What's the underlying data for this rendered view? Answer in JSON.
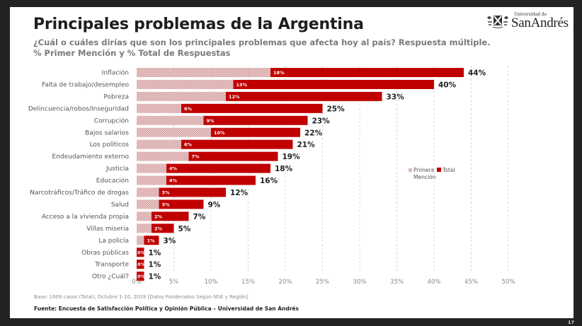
{
  "slide": {
    "title": "Principales problemas de la Argentina",
    "subtitle_line1": "¿Cuál o cuáles dirías que son los principales problemas que afecta hoy al país? Respuesta múltiple.",
    "subtitle_line2": "% Primer Mención y % Total de Respuestas",
    "logo": {
      "small_text": "Universidad de",
      "name": "SanAndrés",
      "icon": "university-crest-icon"
    },
    "base_note": "Base: 1009 casos (Total), Octubre 1-10, 2019 [Datos Ponderados Según NSE y Región]",
    "source_note": "Fuente: Encuesta de Satisfacción Política y Opinión Pública – Universidad de San Andrés",
    "page_number": "17"
  },
  "colors": {
    "total_bar": "#c00000",
    "primera_hatch_bg": "#f2d0d0",
    "primera_hatch_line": "#c88a8a",
    "frame": "#232325"
  },
  "chart_data": {
    "type": "bar",
    "orientation": "horizontal",
    "title": "Principales problemas de la Argentina",
    "xlabel": "",
    "ylabel": "",
    "xlim": [
      0,
      50
    ],
    "x_ticks": [
      "0%",
      "5%",
      "10%",
      "15%",
      "20%",
      "25%",
      "30%",
      "35%",
      "40%",
      "45%",
      "50%"
    ],
    "x_tick_values": [
      0,
      5,
      10,
      15,
      20,
      25,
      30,
      35,
      40,
      45,
      50
    ],
    "grid": "vertical dashed",
    "legend": {
      "placement": "right-center",
      "entries": [
        {
          "name": "Primera Mención",
          "label_line1": "Primera",
          "label_line2": "Mención",
          "style": "hatched"
        },
        {
          "name": "Total",
          "label_line1": "Total",
          "style": "solid-red"
        }
      ]
    },
    "categories": [
      "Inflación",
      "Falta de trabajo/desempleo",
      "Pobreza",
      "Delincuencia/robos/Inseguridad",
      "Corrupción",
      "Bajos salarios",
      "Los políticos",
      "Endeudamiento externo",
      "Justicia",
      "Educación",
      "Narcotráficos/Tráfico de drogas",
      "Salud",
      "Acceso a la vivienda propia",
      "Villas miseria",
      "La policía",
      "Obras públicas",
      "Transporte",
      "Otro ¿Cuál?"
    ],
    "series": [
      {
        "name": "Primera Mención",
        "values": [
          18,
          13,
          12,
          6,
          9,
          10,
          6,
          7,
          4,
          4,
          3,
          3,
          2,
          2,
          1,
          0,
          0,
          0
        ],
        "labels": [
          "18%",
          "13%",
          "12%",
          "6%",
          "9%",
          "10%",
          "6%",
          "7%",
          "4%",
          "4%",
          "3%",
          "3%",
          "2%",
          "2%",
          "1%",
          "0%",
          "0%",
          "0%"
        ]
      },
      {
        "name": "Total",
        "values": [
          44,
          40,
          33,
          25,
          23,
          22,
          21,
          19,
          18,
          16,
          12,
          9,
          7,
          5,
          3,
          1,
          1,
          1
        ],
        "labels": [
          "44%",
          "40%",
          "33%",
          "25%",
          "23%",
          "22%",
          "21%",
          "19%",
          "18%",
          "16%",
          "12%",
          "9%",
          "7%",
          "5%",
          "3%",
          "1%",
          "1%",
          "1%"
        ]
      }
    ]
  }
}
